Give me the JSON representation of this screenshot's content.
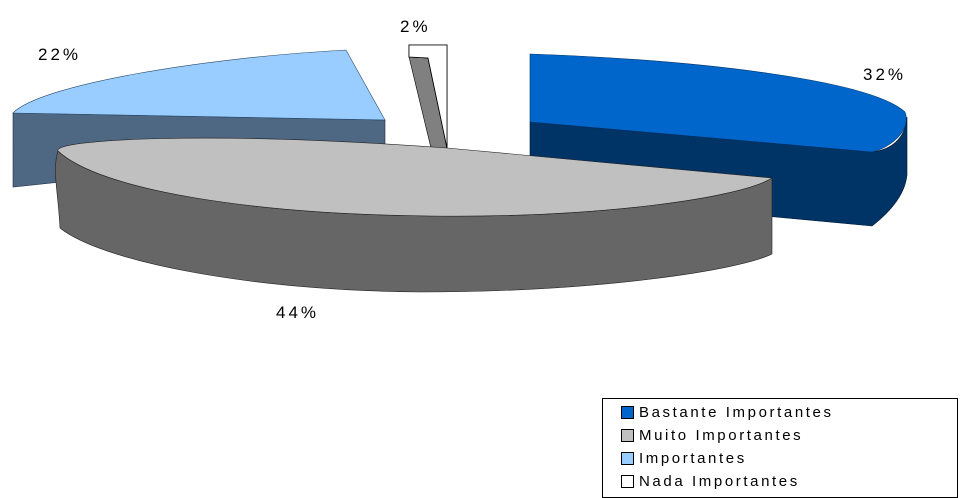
{
  "chart_data": {
    "type": "pie",
    "title": "",
    "slices": [
      {
        "label": "Bastante Importantes",
        "value": 32,
        "display": "32%",
        "color": "#0066CC"
      },
      {
        "label": "Muito Importantes",
        "value": 44,
        "display": "44%",
        "color": "#C0C0C0"
      },
      {
        "label": "Importantes",
        "value": 22,
        "display": "22%",
        "color": "#99CCFF"
      },
      {
        "label": "Nada Importantes",
        "value": 2,
        "display": "2%",
        "color": "#FFFFFF"
      }
    ],
    "legend_position": "bottom-right",
    "exploded": true,
    "three_d": true
  }
}
